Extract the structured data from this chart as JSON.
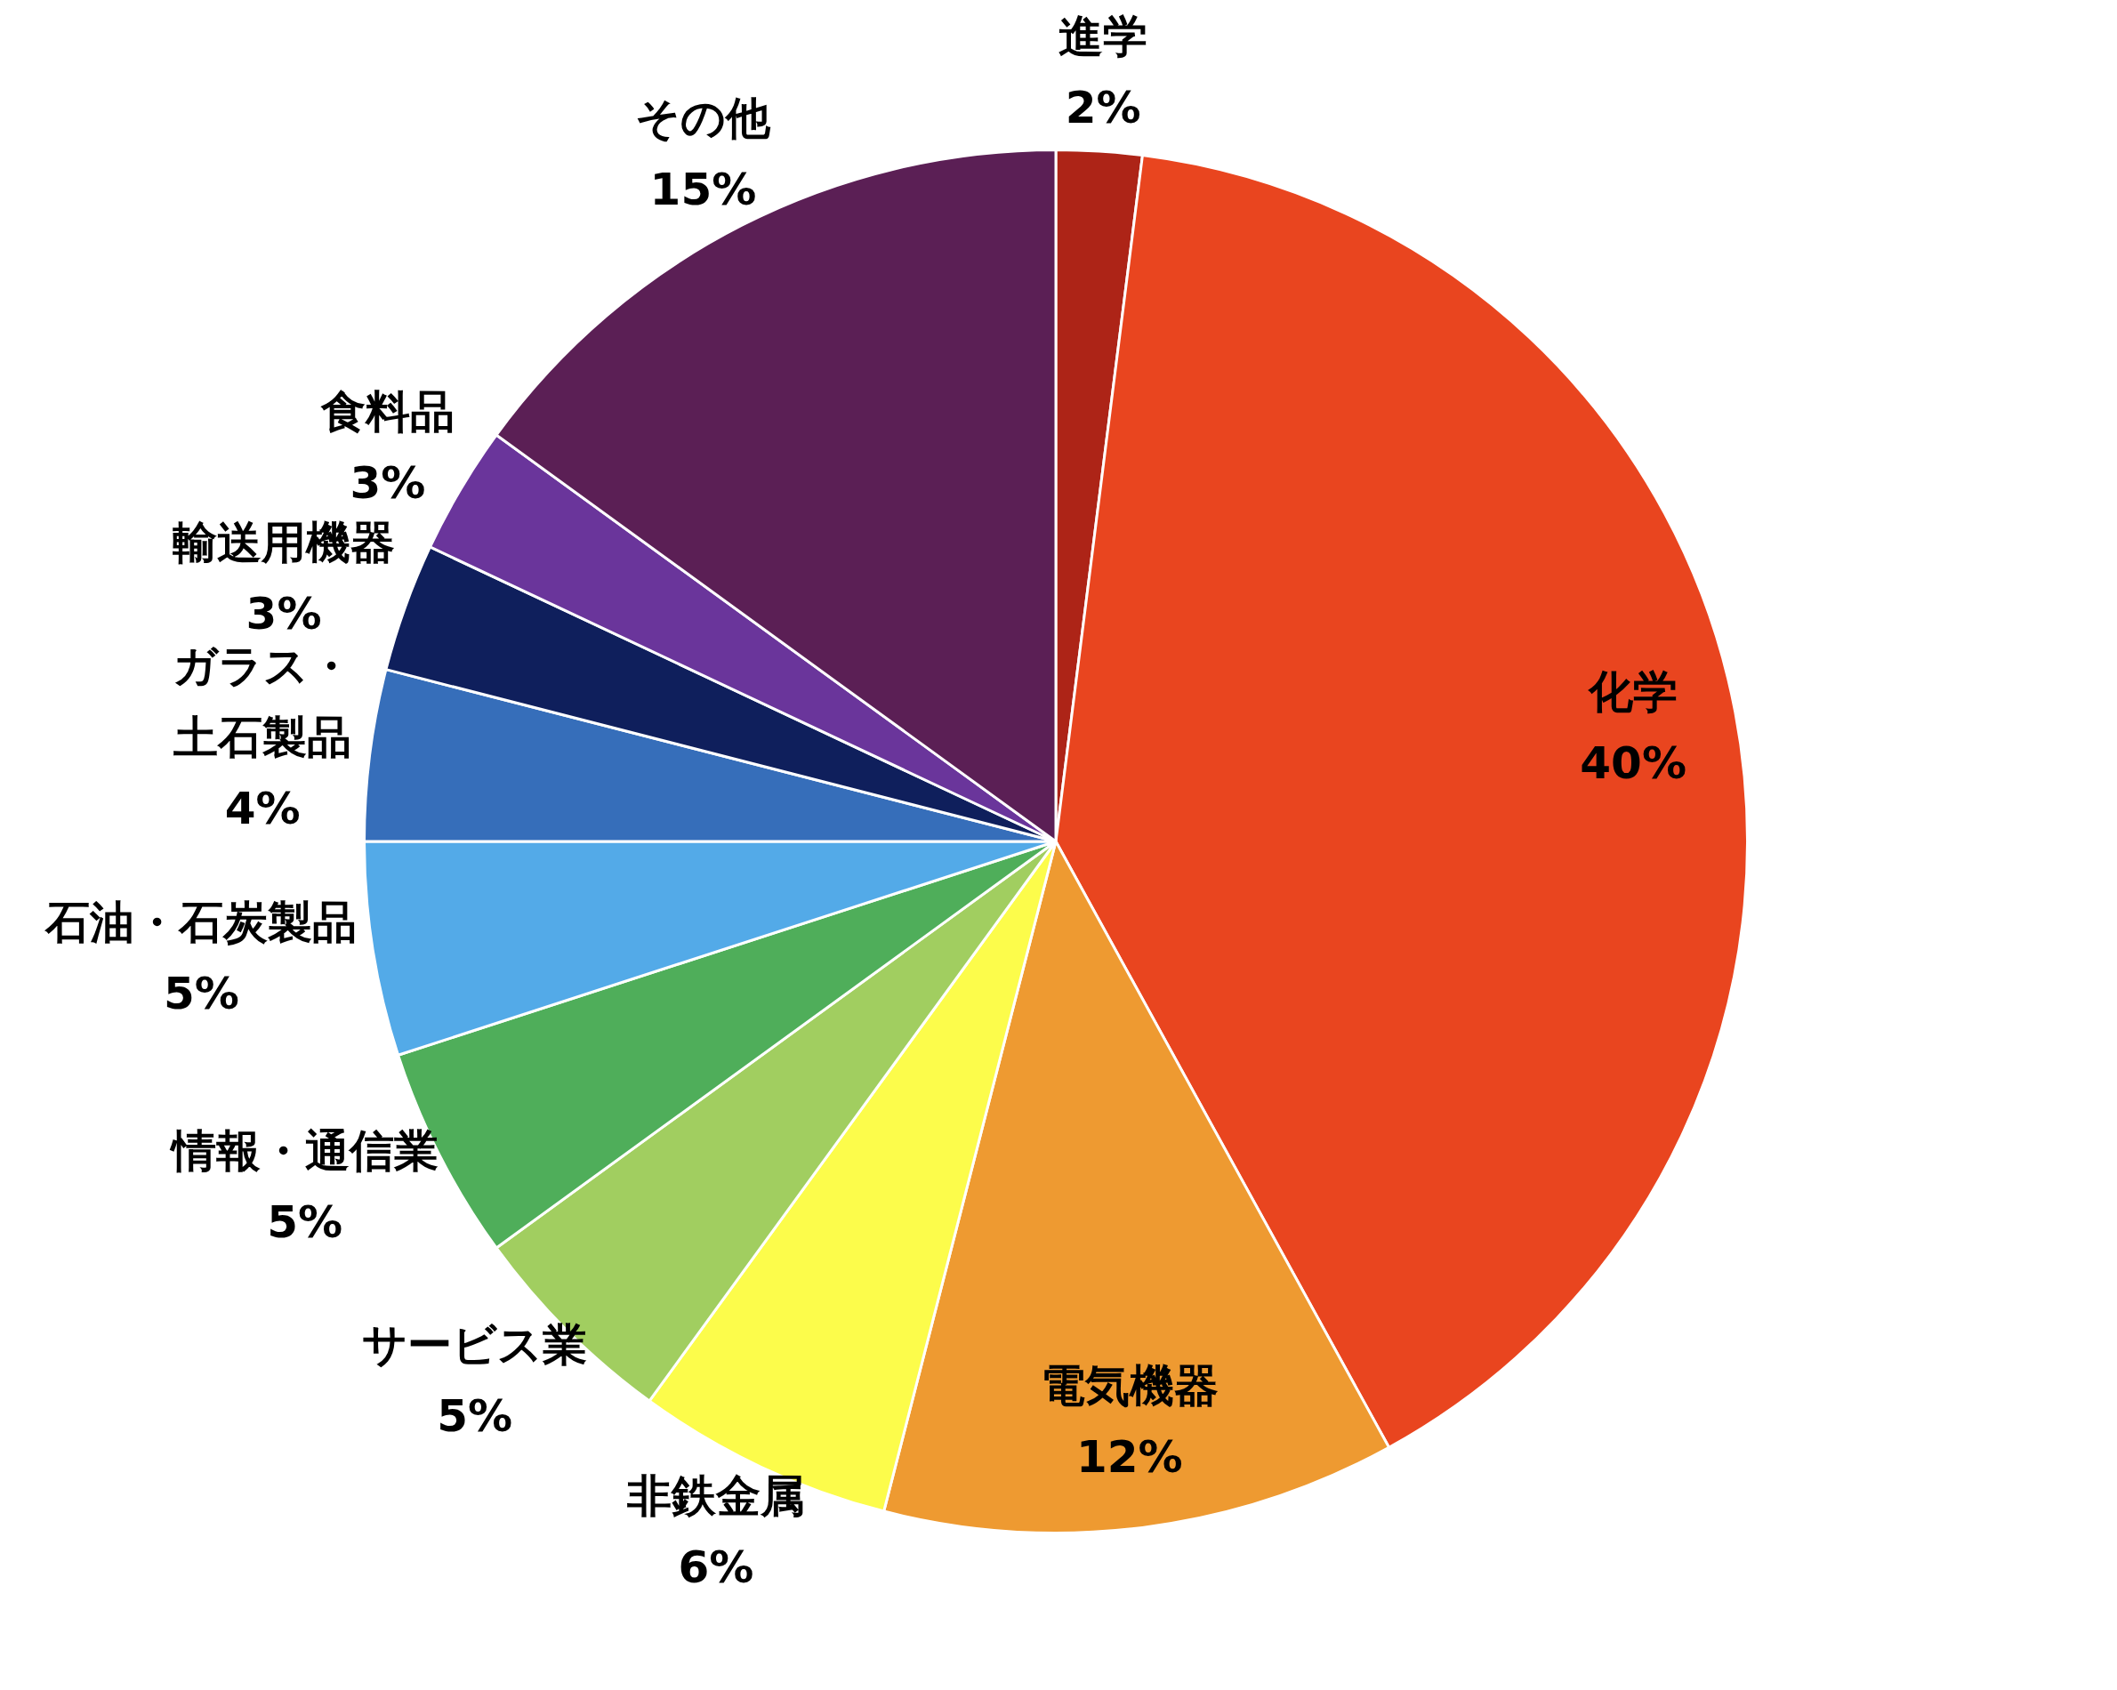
{
  "chart_data": {
    "type": "pie",
    "categories": [
      "進学",
      "化学",
      "電気機器",
      "非鉄金属",
      "サービス業",
      "情報・通信業",
      "石油・石炭製品",
      "ガラス・土石製品",
      "輸送用機器",
      "食料品",
      "その他"
    ],
    "values": [
      2,
      40,
      12,
      6,
      5,
      5,
      5,
      4,
      3,
      3,
      15
    ],
    "value_labels": [
      "2%",
      "40%",
      "12%",
      "6%",
      "5%",
      "5%",
      "5%",
      "4%",
      "3%",
      "3%",
      "15%"
    ],
    "colors": [
      "#ad2417",
      "#e9451f",
      "#ee9a31",
      "#fcfc4b",
      "#a1ce60",
      "#4fae5a",
      "#53aae8",
      "#366eba",
      "#0f1f5c",
      "#6a359b",
      "#5b1f55"
    ]
  }
}
